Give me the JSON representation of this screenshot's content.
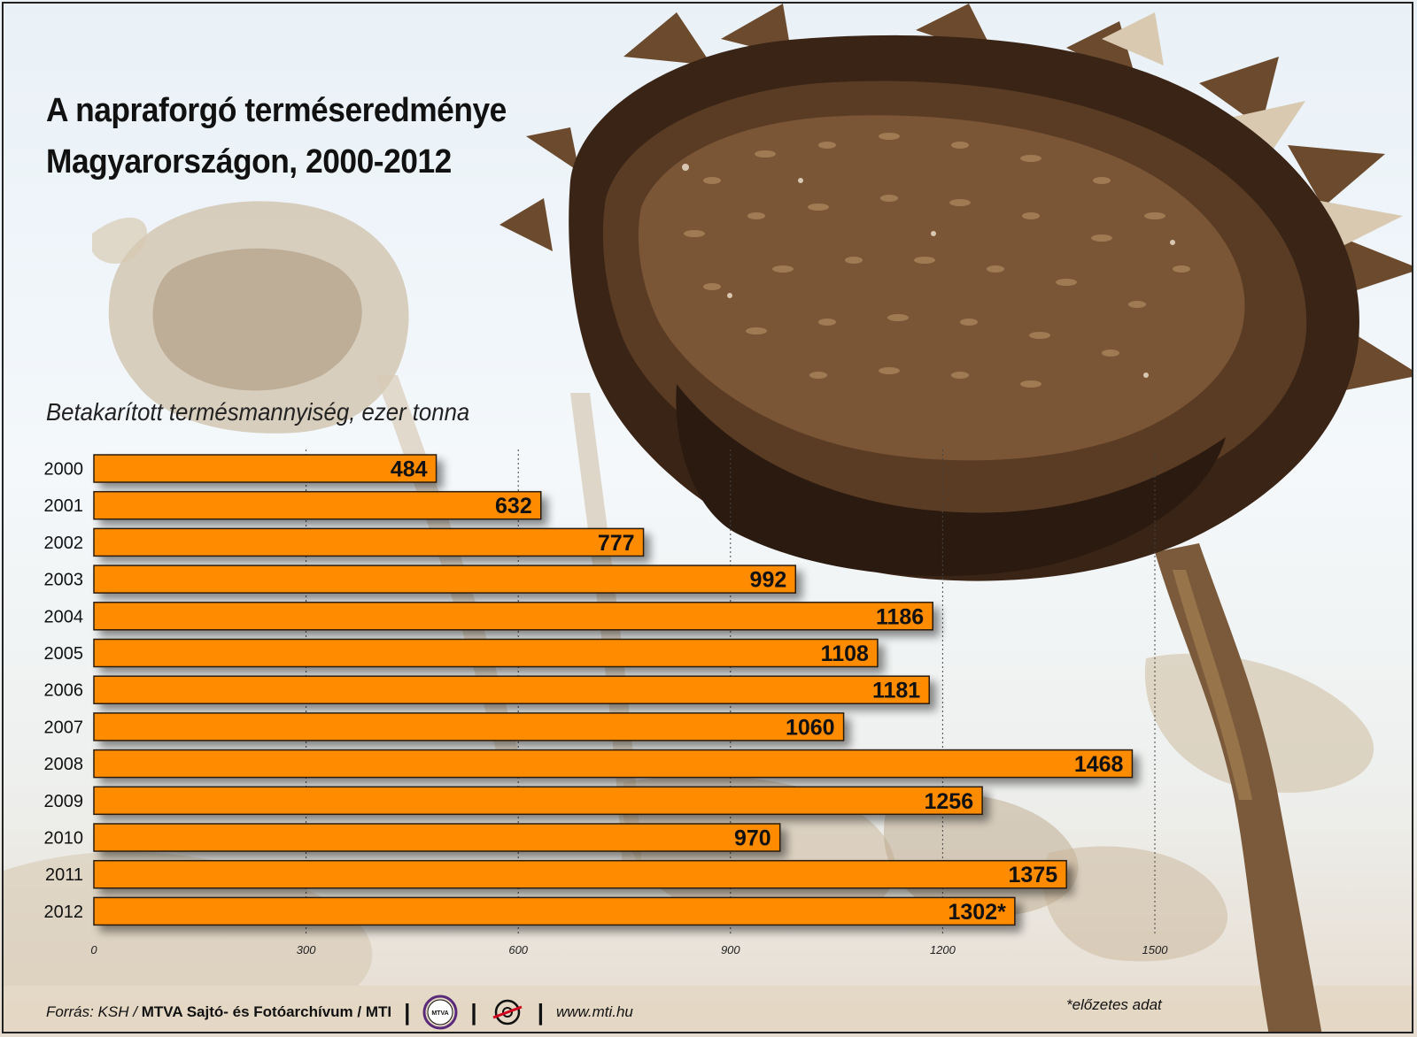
{
  "title_line1": "A napraforgó terméseredménye",
  "title_line2": "Magyarországon, 2000-2012",
  "chart_data": {
    "type": "bar",
    "orientation": "horizontal",
    "ylabel": "Betakarított termésmannyiség, ezer tonna",
    "categories": [
      "2000",
      "2001",
      "2002",
      "2003",
      "2004",
      "2005",
      "2006",
      "2007",
      "2008",
      "2009",
      "2010",
      "2011",
      "2012"
    ],
    "values": [
      484,
      632,
      777,
      992,
      1186,
      1108,
      1181,
      1060,
      1468,
      1256,
      970,
      1375,
      1302
    ],
    "value_labels": [
      "484",
      "632",
      "777",
      "992",
      "1186",
      "1108",
      "1181",
      "1060",
      "1468",
      "1256",
      "970",
      "1375",
      "1302*"
    ],
    "xlim": [
      0,
      1500
    ],
    "ticks": [
      "0",
      "300",
      "600",
      "900",
      "1200",
      "1500"
    ],
    "tick_values": [
      0,
      300,
      600,
      900,
      1200,
      1500
    ],
    "grid": true,
    "bar_color": "#ff8c00"
  },
  "footer": {
    "source_prefix": "Forrás: KSH /",
    "source_bold": "MTVA Sajtó- és Fotóarchívum / MTI",
    "sep": "|",
    "logo1_text": "MTVA",
    "url": "www.mti.hu",
    "note": "*előzetes adat"
  },
  "colors": {
    "bar": "#ff8c00",
    "bar_border": "#2a1a0a",
    "title": "#111111"
  },
  "icons": [
    "mtva-logo-icon",
    "mti-logo-icon",
    "sunflower-illustration"
  ]
}
